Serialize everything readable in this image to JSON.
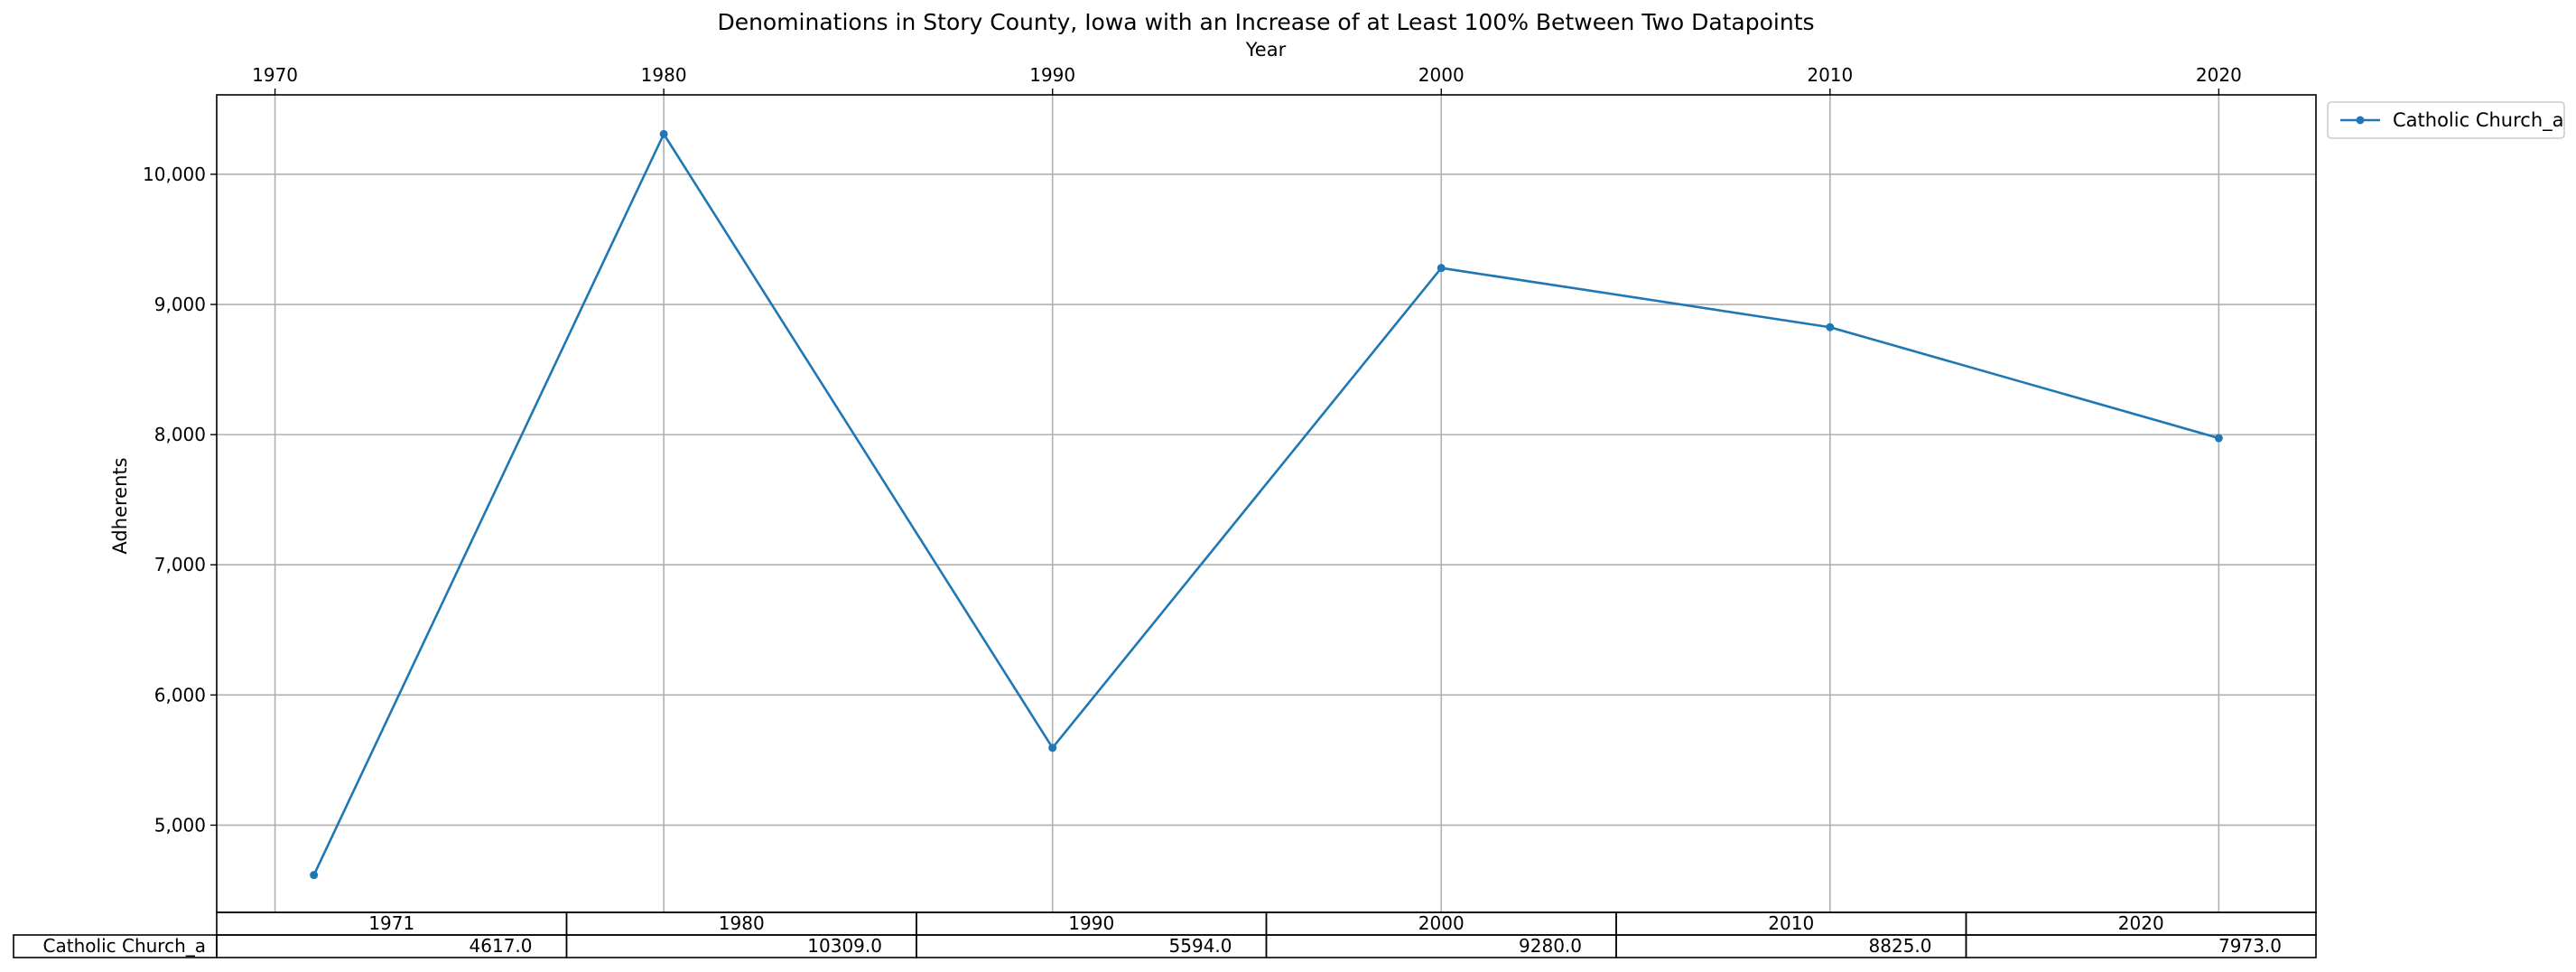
{
  "chart_data": {
    "type": "line",
    "title": "Denominations in Story County, Iowa with an Increase of at Least 100% Between Two Datapoints",
    "xlabel": "Year",
    "ylabel": "Adherents",
    "x_axis_position": "top",
    "xlim": [
      1968.5,
      2022.5
    ],
    "ylim": [
      4330,
      10610
    ],
    "x_ticks": [
      1970,
      1980,
      1990,
      2000,
      2010,
      2020
    ],
    "x_tick_labels": [
      "1970",
      "1980",
      "1990",
      "2000",
      "2010",
      "2020"
    ],
    "y_ticks": [
      5000,
      6000,
      7000,
      8000,
      9000,
      10000
    ],
    "y_tick_labels": [
      "5,000",
      "6,000",
      "7,000",
      "8,000",
      "9,000",
      "10,000"
    ],
    "grid": true,
    "legend_placement": "outside-top-right",
    "series": [
      {
        "name": "Catholic Church_a",
        "color": "#1f77b4",
        "x": [
          1971,
          1980,
          1990,
          2000,
          2010,
          2020
        ],
        "y": [
          4617,
          10309,
          5594,
          9280,
          8825,
          7973
        ]
      }
    ],
    "table": {
      "columns": [
        "1971",
        "1980",
        "1990",
        "2000",
        "2010",
        "2020"
      ],
      "rows": [
        {
          "label": "Catholic Church_a",
          "cells": [
            "4617.0",
            "10309.0",
            "5594.0",
            "9280.0",
            "8825.0",
            "7973.0"
          ]
        }
      ]
    }
  }
}
